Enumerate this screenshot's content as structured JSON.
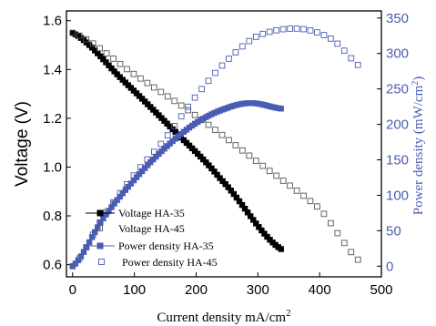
{
  "chart_data": {
    "type": "line",
    "xlabel": "Current density mA/cm",
    "xlabel_sup": "2",
    "ylabel_left": "Voltage (V)",
    "ylabel_right": "Power density (mW/cm",
    "ylabel_right_sup": "2",
    "ylabel_right_close": ")",
    "xlim": [
      -10,
      500
    ],
    "ylim_left": [
      0.55,
      1.64
    ],
    "ylim_right": [
      -15,
      360
    ],
    "xticks": [
      0,
      100,
      200,
      300,
      400,
      500
    ],
    "yticks_left": [
      0.6,
      0.8,
      1.0,
      1.2,
      1.4,
      1.6
    ],
    "yticks_left_labels": [
      "0.6",
      "0.8",
      "1.0",
      "1.2",
      "1.4",
      "1.6"
    ],
    "yticks_right": [
      0,
      50,
      100,
      150,
      200,
      250,
      300,
      350
    ],
    "legend_position": "bottom-left",
    "grid": false,
    "series": [
      {
        "name": "Voltage HA-35",
        "axis": "left",
        "marker": "filled-square",
        "line": true,
        "color": "#000000",
        "step": 4.5,
        "x_range": [
          0,
          340
        ],
        "points": [
          [
            0,
            1.55
          ],
          [
            80,
            1.36
          ],
          [
            160,
            1.16
          ],
          [
            240,
            0.95
          ],
          [
            340,
            0.66
          ]
        ]
      },
      {
        "name": "Voltage HA-45",
        "axis": "left",
        "marker": "open-square",
        "line": false,
        "color": "#555555",
        "step": 11,
        "x_range": [
          0,
          472
        ],
        "points": [
          [
            0,
            1.55
          ],
          [
            100,
            1.38
          ],
          [
            200,
            1.21
          ],
          [
            300,
            1.02
          ],
          [
            400,
            0.83
          ],
          [
            472,
            0.6
          ]
        ]
      },
      {
        "name": "Power density HA-35",
        "axis": "right",
        "marker": "filled-square",
        "line": true,
        "color": "#4a5db2",
        "step": 4.5,
        "x_range": [
          0,
          340
        ],
        "points": [
          [
            0,
            0
          ],
          [
            50,
            68
          ],
          [
            100,
            122
          ],
          [
            150,
            167
          ],
          [
            200,
            202
          ],
          [
            250,
            223
          ],
          [
            290,
            230
          ],
          [
            340,
            222
          ]
        ]
      },
      {
        "name": "Power density HA-45",
        "axis": "right",
        "marker": "open-square",
        "line": false,
        "color": "#4a5db2",
        "step": 11,
        "x_range": [
          0,
          472
        ],
        "points": [
          [
            0,
            0
          ],
          [
            50,
            70
          ],
          [
            100,
            129
          ],
          [
            150,
            180
          ],
          [
            200,
            240
          ],
          [
            250,
            290
          ],
          [
            300,
            325
          ],
          [
            365,
            335
          ],
          [
            420,
            320
          ],
          [
            472,
            278
          ]
        ]
      }
    ]
  }
}
